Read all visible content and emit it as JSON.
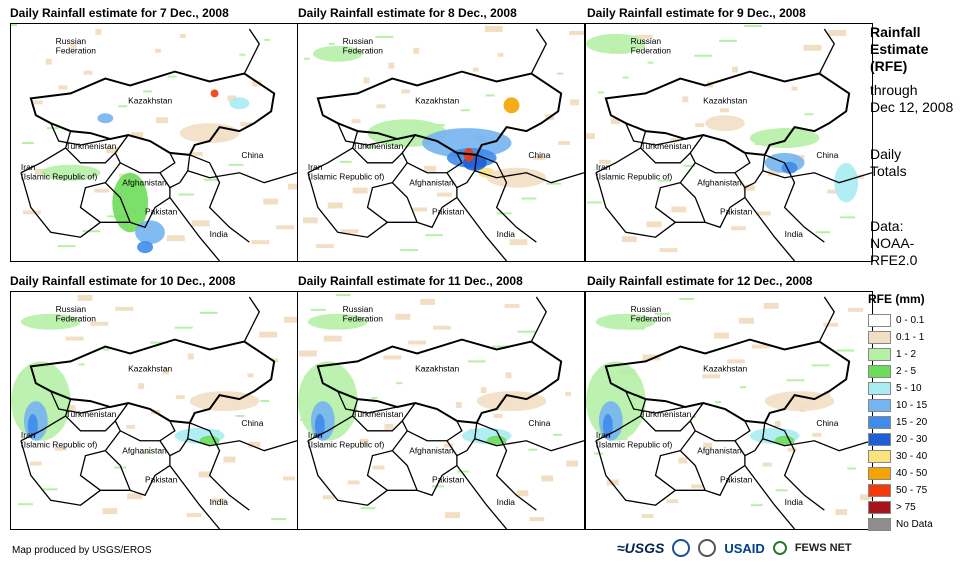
{
  "panels": [
    {
      "title": "Daily Rainfall estimate for 7 Dec., 2008",
      "intensity": "sw"
    },
    {
      "title": "Daily Rainfall estimate for 8 Dec., 2008",
      "intensity": "center"
    },
    {
      "title": "Daily Rainfall estimate for 9 Dec., 2008",
      "intensity": "east"
    },
    {
      "title": "Daily Rainfall estimate for 10 Dec., 2008",
      "intensity": "west"
    },
    {
      "title": "Daily Rainfall estimate for 11 Dec., 2008",
      "intensity": "west"
    },
    {
      "title": "Daily Rainfall estimate for 12 Dec., 2008",
      "intensity": "west"
    }
  ],
  "map_labels": {
    "russia": "Russian\nFederation",
    "kazakhstan": "Kazakhstan",
    "turkmenistan": "Turkmenistan",
    "iran": "Iran\n(Islamic Republic of)",
    "afghanistan": "Afghanistan",
    "pakistan": "Pakistan",
    "china": "China",
    "india": "India"
  },
  "side": {
    "title_line1": "Rainfall",
    "title_line2": "Estimate",
    "title_line3": "(RFE)",
    "through": "through",
    "date": "Dec 12, 2008",
    "daily": "Daily",
    "totals": "Totals",
    "data_label": "Data:",
    "data_src1": "NOAA-",
    "data_src2": "RFE2.0"
  },
  "legend": {
    "title": "RFE (mm)",
    "items": [
      {
        "label": "0 - 0.1",
        "color": "#ffffff"
      },
      {
        "label": "0.1 - 1",
        "color": "#f2dfc3"
      },
      {
        "label": "1 - 2",
        "color": "#b6efa6"
      },
      {
        "label": "2 - 5",
        "color": "#6ddc5a"
      },
      {
        "label": "5 - 10",
        "color": "#a9ecf3"
      },
      {
        "label": "10 - 15",
        "color": "#74b4ef"
      },
      {
        "label": "15 - 20",
        "color": "#3f8ceb"
      },
      {
        "label": "20 - 30",
        "color": "#1e5fd6"
      },
      {
        "label": "30 - 40",
        "color": "#fde37c"
      },
      {
        "label": "40 - 50",
        "color": "#f5a300"
      },
      {
        "label": "50 - 75",
        "color": "#f23a0c"
      },
      {
        "label": "> 75",
        "color": "#a8141c"
      },
      {
        "label": "No Data",
        "color": "#8e8e8e"
      }
    ]
  },
  "footer": {
    "credit": "Map produced by USGS/EROS",
    "logo_usgs": "≈USGS",
    "logo_usaid": "USAID",
    "logo_fews": "FEWS NET"
  }
}
